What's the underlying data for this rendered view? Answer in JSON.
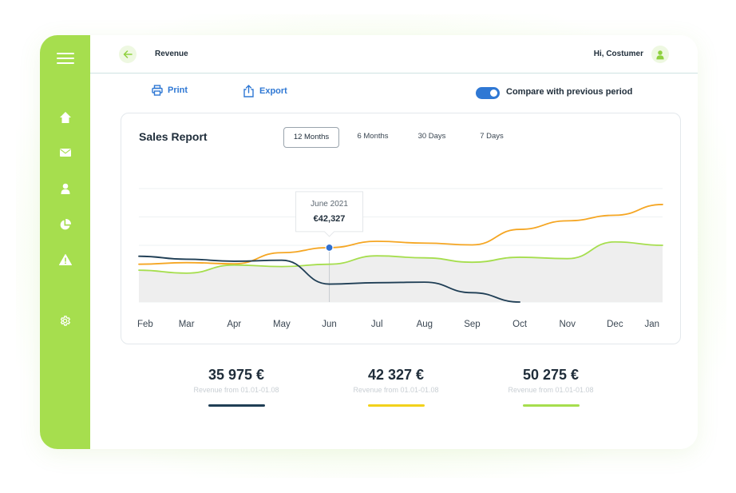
{
  "header": {
    "title": "Revenue",
    "greeting": "Hi, Costumer"
  },
  "sidebar": {
    "items": [
      {
        "name": "menu",
        "icon": "hamburger-menu-icon"
      },
      {
        "name": "home",
        "icon": "home-icon"
      },
      {
        "name": "mail",
        "icon": "mail-icon"
      },
      {
        "name": "user",
        "icon": "user-icon"
      },
      {
        "name": "reports",
        "icon": "pie-chart-icon"
      },
      {
        "name": "alerts",
        "icon": "warning-icon"
      },
      {
        "name": "settings",
        "icon": "gear-icon"
      }
    ],
    "color": "#a6de4e"
  },
  "toolbar": {
    "print_label": "Print",
    "export_label": "Export",
    "compare_label": "Compare with previous period",
    "compare_enabled": true
  },
  "report": {
    "title": "Sales Report",
    "tabs": [
      {
        "label": "12 Months",
        "active": true
      },
      {
        "label": "6 Months",
        "active": false
      },
      {
        "label": "30 Days",
        "active": false
      },
      {
        "label": "7 Days",
        "active": false
      }
    ],
    "tooltip": {
      "label": "June 2021",
      "value": "€42,327"
    }
  },
  "chart_data": {
    "type": "line",
    "categories": [
      "Feb",
      "Mar",
      "Apr",
      "May",
      "Jun",
      "Jul",
      "Aug",
      "Sep",
      "Oct",
      "Nov",
      "Dec",
      "Jan"
    ],
    "series": [
      {
        "color": "#f5a623",
        "values": [
          34000,
          34800,
          34200,
          39800,
          42327,
          45500,
          44600,
          43700,
          51500,
          55800,
          58600,
          64000
        ]
      },
      {
        "color": "#a6de4e",
        "values": [
          31000,
          29500,
          33600,
          32800,
          34000,
          38200,
          37200,
          35000,
          37500,
          36800,
          45200,
          43500
        ]
      },
      {
        "color": "#1f3e55",
        "values": [
          38000,
          36500,
          35500,
          36000,
          24000,
          24700,
          25000,
          19700,
          15000,
          null,
          null,
          null
        ]
      }
    ],
    "area_series_index": 1,
    "highlight": {
      "series_index": 0,
      "category": "Jun"
    },
    "ylim": [
      15000,
      72000
    ],
    "grid": true
  },
  "summary": [
    {
      "value": "35 975 €",
      "caption": "Revenue from 01.01-01.08",
      "color": "#1f3e55"
    },
    {
      "value": "42 327 €",
      "caption": "Revenue from 01.01-01.08",
      "color": "#f2d21b"
    },
    {
      "value": "50 275 €",
      "caption": "Revenue from 01.01-01.08",
      "color": "#a6de4e"
    }
  ]
}
